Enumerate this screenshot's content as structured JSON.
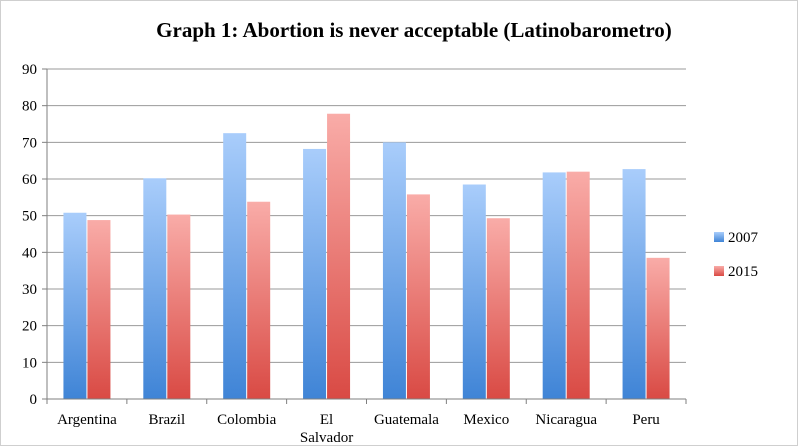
{
  "chart_data": {
    "type": "bar",
    "title": "Graph 1: Abortion is never acceptable (Latinobarometro)",
    "categories": [
      "Argentina",
      "Brazil",
      "Colombia",
      "El Salvador",
      "Guatemala",
      "Mexico",
      "Nicaragua",
      "Peru"
    ],
    "category_lines": [
      [
        "Argentina"
      ],
      [
        "Brazil"
      ],
      [
        "Colombia"
      ],
      [
        "El",
        "Salvador"
      ],
      [
        "Guatemala"
      ],
      [
        "Mexico"
      ],
      [
        "Nicaragua"
      ],
      [
        "Peru"
      ]
    ],
    "series": [
      {
        "name": "2007",
        "values": [
          50.8,
          60.2,
          72.5,
          68.2,
          70.0,
          58.5,
          61.8,
          62.7
        ],
        "color_light": "#a9cdfb",
        "color_dark": "#3f84d6"
      },
      {
        "name": "2015",
        "values": [
          48.8,
          50.3,
          53.8,
          77.8,
          55.8,
          49.3,
          62.0,
          38.5
        ],
        "color_light": "#f9aca8",
        "color_dark": "#d94a44"
      }
    ],
    "ylim": [
      0,
      90
    ],
    "yticks": [
      "0",
      "10",
      "20",
      "30",
      "40",
      "50",
      "60",
      "70",
      "80",
      "90"
    ],
    "ytick_values": [
      0,
      10,
      20,
      30,
      40,
      50,
      60,
      70,
      80,
      90
    ],
    "xlabel": "",
    "ylabel": "",
    "grid": true,
    "legend_position": "right"
  }
}
